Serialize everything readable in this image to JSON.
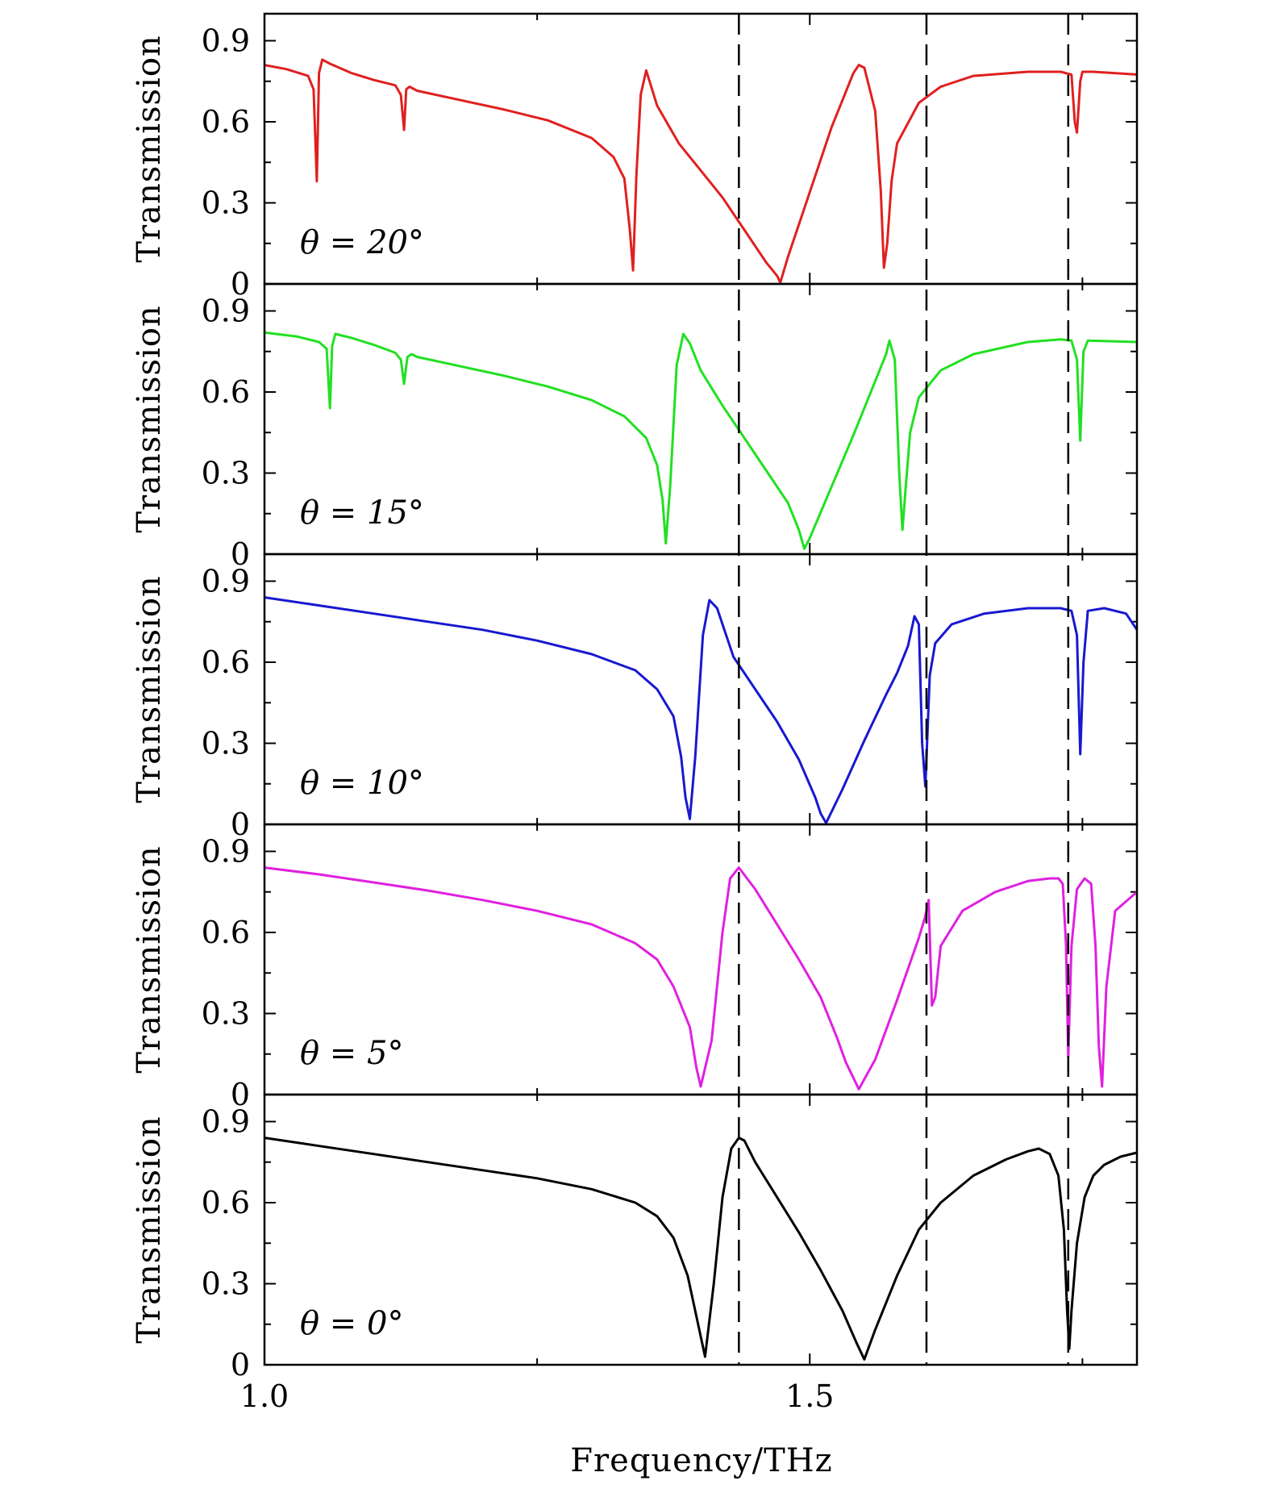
{
  "chart_data": {
    "type": "line",
    "xlabel": "Frequency/THz",
    "ylabel": "Transmission",
    "xlim": [
      1.0,
      1.8
    ],
    "ylim": [
      0,
      1.0
    ],
    "x_ticks": [
      1.0,
      1.5
    ],
    "x_tick_labels": [
      "1.0",
      "1.5"
    ],
    "x_minor_ticks": [
      1.25,
      1.75
    ],
    "y_ticks": [
      0,
      0.3,
      0.6,
      0.9
    ],
    "y_tick_labels": [
      "0",
      "0.3",
      "0.6",
      "0.9"
    ],
    "y_minor_ticks": [
      0.15,
      0.45,
      0.75
    ],
    "vertical_dashed_lines": [
      1.435,
      1.607,
      1.737
    ],
    "grid": false,
    "panels": [
      {
        "label": "θ = 20°",
        "color": "#e02020",
        "x": [
          1.0,
          1.02,
          1.04,
          1.045,
          1.048,
          1.05,
          1.053,
          1.06,
          1.08,
          1.1,
          1.12,
          1.125,
          1.128,
          1.13,
          1.133,
          1.14,
          1.18,
          1.22,
          1.26,
          1.3,
          1.32,
          1.33,
          1.335,
          1.338,
          1.341,
          1.345,
          1.35,
          1.36,
          1.38,
          1.4,
          1.42,
          1.44,
          1.46,
          1.47,
          1.473,
          1.48,
          1.5,
          1.52,
          1.54,
          1.545,
          1.55,
          1.56,
          1.565,
          1.568,
          1.571,
          1.575,
          1.58,
          1.6,
          1.62,
          1.65,
          1.7,
          1.73,
          1.74,
          1.743,
          1.745,
          1.748,
          1.75,
          1.76,
          1.8
        ],
        "y": [
          0.81,
          0.795,
          0.77,
          0.72,
          0.38,
          0.78,
          0.83,
          0.815,
          0.78,
          0.755,
          0.735,
          0.7,
          0.57,
          0.72,
          0.73,
          0.715,
          0.68,
          0.645,
          0.605,
          0.54,
          0.47,
          0.39,
          0.2,
          0.05,
          0.4,
          0.7,
          0.79,
          0.66,
          0.52,
          0.42,
          0.32,
          0.2,
          0.08,
          0.03,
          0.005,
          0.1,
          0.34,
          0.58,
          0.78,
          0.81,
          0.8,
          0.64,
          0.35,
          0.06,
          0.15,
          0.38,
          0.52,
          0.67,
          0.73,
          0.77,
          0.785,
          0.785,
          0.775,
          0.6,
          0.56,
          0.75,
          0.785,
          0.785,
          0.775
        ]
      },
      {
        "label": "θ = 15°",
        "color": "#22e022",
        "x": [
          1.0,
          1.03,
          1.05,
          1.057,
          1.06,
          1.062,
          1.065,
          1.08,
          1.1,
          1.12,
          1.125,
          1.128,
          1.131,
          1.135,
          1.14,
          1.18,
          1.22,
          1.26,
          1.3,
          1.33,
          1.35,
          1.36,
          1.365,
          1.368,
          1.372,
          1.378,
          1.384,
          1.39,
          1.4,
          1.42,
          1.44,
          1.46,
          1.48,
          1.49,
          1.495,
          1.5,
          1.52,
          1.54,
          1.56,
          1.57,
          1.573,
          1.578,
          1.582,
          1.585,
          1.588,
          1.592,
          1.6,
          1.62,
          1.65,
          1.7,
          1.73,
          1.74,
          1.745,
          1.748,
          1.751,
          1.755,
          1.8
        ],
        "y": [
          0.82,
          0.805,
          0.785,
          0.76,
          0.54,
          0.77,
          0.815,
          0.8,
          0.775,
          0.745,
          0.72,
          0.63,
          0.73,
          0.74,
          0.73,
          0.695,
          0.66,
          0.62,
          0.57,
          0.51,
          0.43,
          0.33,
          0.2,
          0.04,
          0.25,
          0.7,
          0.815,
          0.78,
          0.68,
          0.55,
          0.43,
          0.31,
          0.19,
          0.09,
          0.02,
          0.06,
          0.25,
          0.44,
          0.64,
          0.74,
          0.79,
          0.72,
          0.3,
          0.09,
          0.25,
          0.45,
          0.58,
          0.68,
          0.74,
          0.785,
          0.795,
          0.79,
          0.72,
          0.42,
          0.75,
          0.79,
          0.785
        ]
      },
      {
        "label": "θ = 10°",
        "color": "#1818d0",
        "x": [
          1.0,
          1.05,
          1.1,
          1.15,
          1.2,
          1.25,
          1.3,
          1.34,
          1.36,
          1.375,
          1.382,
          1.386,
          1.39,
          1.395,
          1.402,
          1.408,
          1.415,
          1.43,
          1.45,
          1.47,
          1.49,
          1.505,
          1.51,
          1.515,
          1.53,
          1.55,
          1.57,
          1.58,
          1.59,
          1.596,
          1.6,
          1.603,
          1.606,
          1.61,
          1.615,
          1.63,
          1.66,
          1.7,
          1.73,
          1.74,
          1.745,
          1.748,
          1.751,
          1.755,
          1.77,
          1.79,
          1.8
        ],
        "y": [
          0.84,
          0.81,
          0.78,
          0.75,
          0.72,
          0.68,
          0.63,
          0.57,
          0.5,
          0.4,
          0.25,
          0.1,
          0.02,
          0.25,
          0.7,
          0.83,
          0.8,
          0.62,
          0.5,
          0.38,
          0.24,
          0.1,
          0.04,
          0.005,
          0.13,
          0.31,
          0.48,
          0.56,
          0.66,
          0.77,
          0.74,
          0.3,
          0.14,
          0.55,
          0.67,
          0.74,
          0.78,
          0.8,
          0.8,
          0.79,
          0.7,
          0.26,
          0.6,
          0.79,
          0.8,
          0.78,
          0.72
        ]
      },
      {
        "label": "θ = 5°",
        "color": "#e020e0",
        "x": [
          1.0,
          1.05,
          1.1,
          1.15,
          1.2,
          1.25,
          1.3,
          1.34,
          1.36,
          1.375,
          1.39,
          1.396,
          1.4,
          1.41,
          1.42,
          1.427,
          1.435,
          1.45,
          1.47,
          1.49,
          1.51,
          1.525,
          1.533,
          1.545,
          1.56,
          1.58,
          1.6,
          1.606,
          1.609,
          1.612,
          1.615,
          1.62,
          1.64,
          1.67,
          1.7,
          1.72,
          1.728,
          1.732,
          1.735,
          1.737,
          1.74,
          1.745,
          1.752,
          1.758,
          1.762,
          1.765,
          1.768,
          1.772,
          1.78,
          1.8
        ],
        "y": [
          0.84,
          0.815,
          0.785,
          0.755,
          0.72,
          0.68,
          0.63,
          0.56,
          0.5,
          0.4,
          0.25,
          0.1,
          0.03,
          0.2,
          0.6,
          0.8,
          0.84,
          0.76,
          0.63,
          0.5,
          0.36,
          0.21,
          0.12,
          0.02,
          0.13,
          0.35,
          0.58,
          0.66,
          0.72,
          0.33,
          0.36,
          0.55,
          0.68,
          0.75,
          0.79,
          0.8,
          0.8,
          0.78,
          0.55,
          0.14,
          0.55,
          0.76,
          0.8,
          0.78,
          0.55,
          0.18,
          0.03,
          0.4,
          0.68,
          0.75
        ]
      },
      {
        "label": "θ = 0°",
        "color": "#000000",
        "x": [
          1.0,
          1.05,
          1.1,
          1.15,
          1.2,
          1.25,
          1.3,
          1.34,
          1.36,
          1.375,
          1.388,
          1.396,
          1.404,
          1.412,
          1.42,
          1.428,
          1.435,
          1.44,
          1.45,
          1.47,
          1.49,
          1.51,
          1.53,
          1.543,
          1.55,
          1.56,
          1.58,
          1.6,
          1.62,
          1.65,
          1.68,
          1.7,
          1.71,
          1.72,
          1.728,
          1.733,
          1.736,
          1.738,
          1.74,
          1.745,
          1.752,
          1.76,
          1.77,
          1.785,
          1.8
        ],
        "y": [
          0.84,
          0.81,
          0.78,
          0.75,
          0.72,
          0.69,
          0.65,
          0.6,
          0.55,
          0.47,
          0.33,
          0.18,
          0.03,
          0.3,
          0.62,
          0.8,
          0.84,
          0.83,
          0.75,
          0.62,
          0.49,
          0.35,
          0.2,
          0.08,
          0.02,
          0.13,
          0.33,
          0.5,
          0.6,
          0.7,
          0.76,
          0.79,
          0.8,
          0.78,
          0.7,
          0.5,
          0.2,
          0.06,
          0.2,
          0.45,
          0.62,
          0.7,
          0.74,
          0.77,
          0.785
        ]
      }
    ]
  }
}
